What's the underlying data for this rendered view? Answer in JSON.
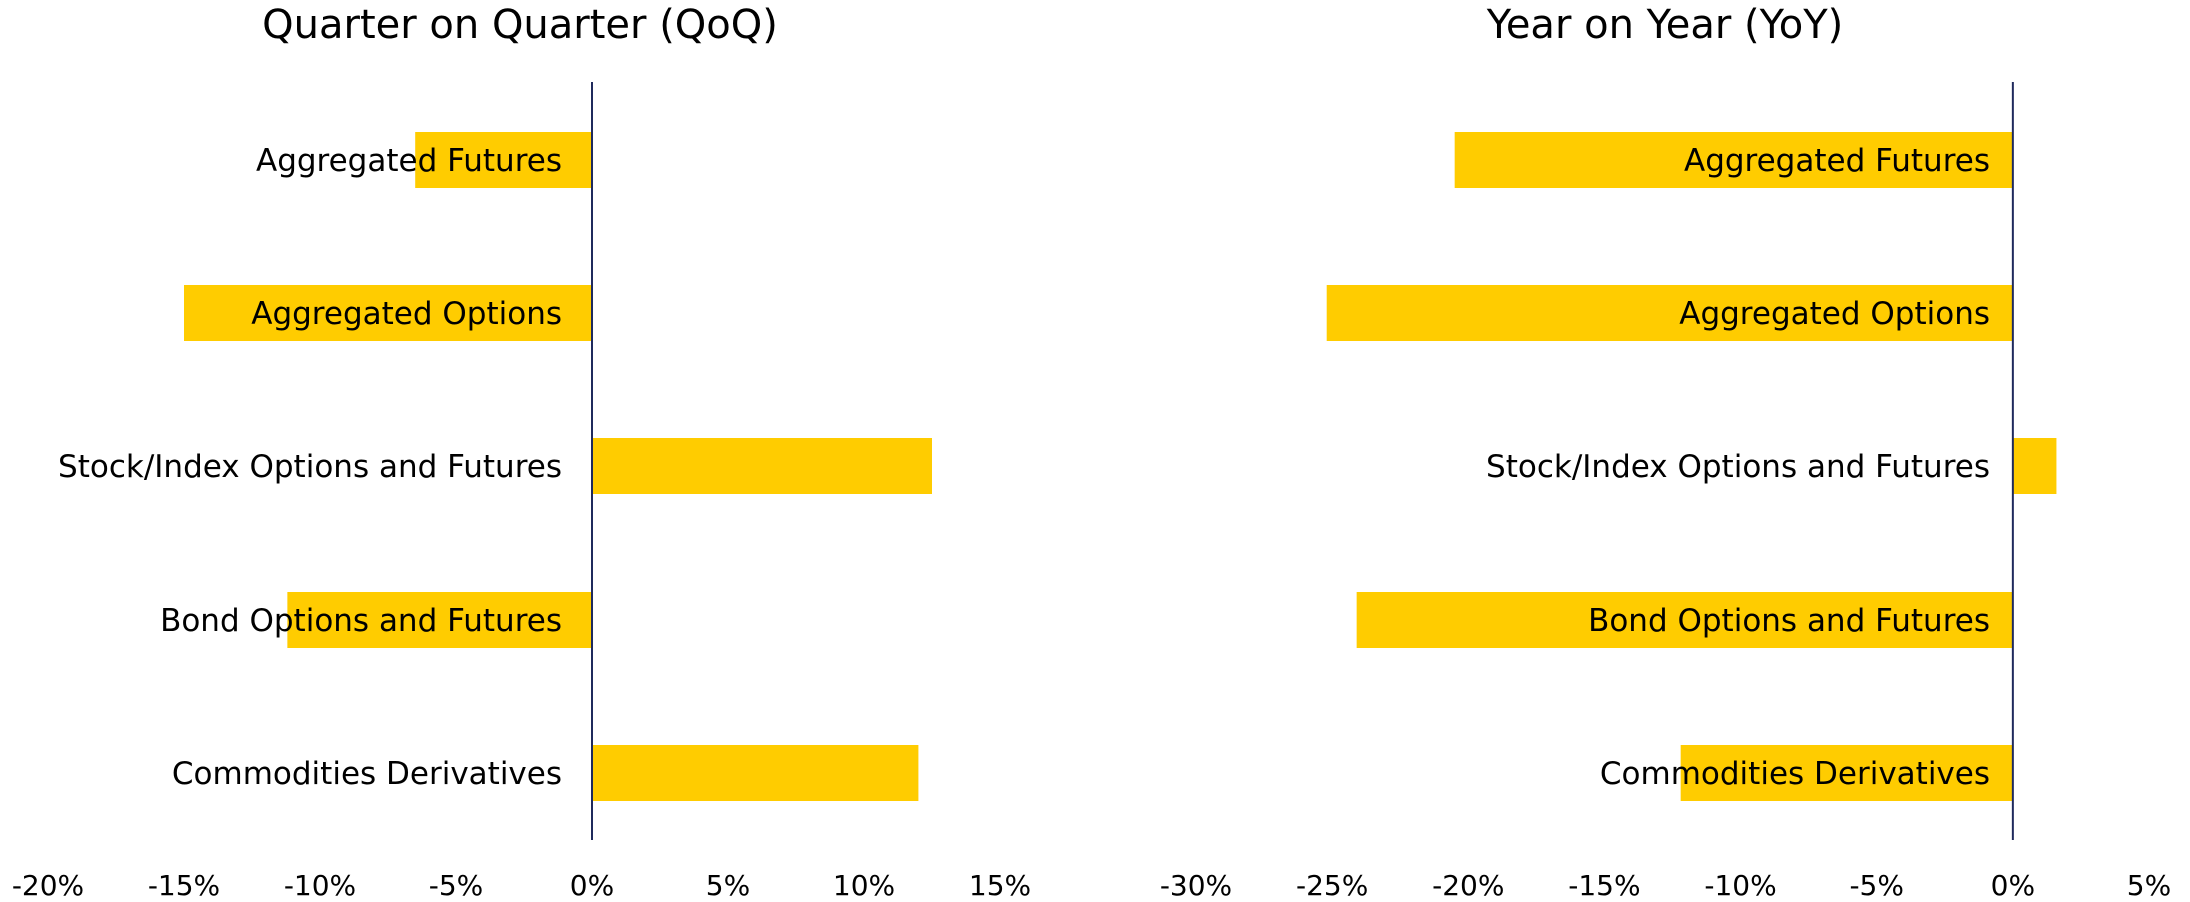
{
  "chart_data": [
    {
      "type": "bar",
      "orientation": "horizontal",
      "title": "Quarter on Quarter (QoQ)",
      "categories": [
        "Aggregated Futures",
        "Aggregated Options",
        "Stock/Index Options and Futures",
        "Bond Options and Futures",
        "Commodities Derivatives"
      ],
      "values": [
        -6.5,
        -15,
        12.5,
        -11.2,
        12
      ],
      "xlim": [
        -20,
        15
      ],
      "xticks": [
        "-20%",
        "-15%",
        "-10%",
        "-5%",
        "0%",
        "5%",
        "10%",
        "15%"
      ],
      "xtick_values": [
        -20,
        -15,
        -10,
        -5,
        0,
        5,
        10,
        15
      ],
      "bar_color": "#FFCC00",
      "zero_line_color": "#1F2A5C",
      "grid": false
    },
    {
      "type": "bar",
      "orientation": "horizontal",
      "title": "Year on Year (YoY)",
      "categories": [
        "Aggregated Futures",
        "Aggregated Options",
        "Stock/Index Options and Futures",
        "Bond Options and Futures",
        "Commodities Derivatives"
      ],
      "values": [
        -20.5,
        -25.2,
        1.6,
        -24.1,
        -12.2
      ],
      "xlim": [
        -30,
        5
      ],
      "xticks": [
        "-30%",
        "-25%",
        "-20%",
        "-15%",
        "-10%",
        "-5%",
        "0%",
        "5%"
      ],
      "xtick_values": [
        -30,
        -25,
        -20,
        -15,
        -10,
        -5,
        0,
        5
      ],
      "bar_color": "#FFCC00",
      "zero_line_color": "#1F2A5C",
      "grid": false
    }
  ]
}
